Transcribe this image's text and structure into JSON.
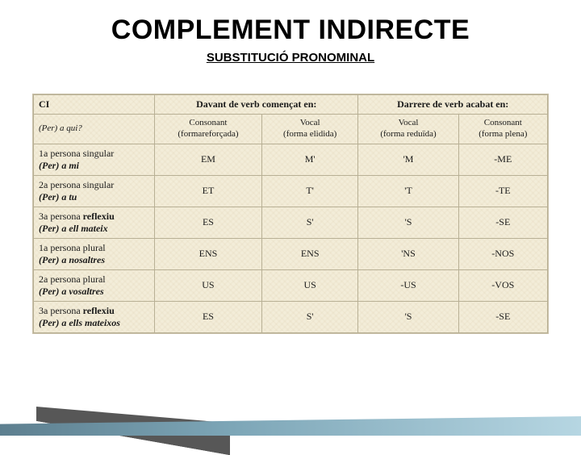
{
  "title": "COMPLEMENT INDIRECTE",
  "subtitle": "SUBSTITUCIÓ PRONOMINAL",
  "table": {
    "header_ci": "CI",
    "header_davant": "Davant de verb començat en:",
    "header_darrere": "Darrere de verb acabat en:",
    "ci_question": "(Per) a qui?",
    "sub_consonant_ref": "Consonant",
    "sub_consonant_ref_note": "(formareforçada)",
    "sub_vocal_elid": "Vocal",
    "sub_vocal_elid_note": "(forma elidida)",
    "sub_vocal_red": "Vocal",
    "sub_vocal_red_note": "(forma reduïda)",
    "sub_consonant_ple": "Consonant",
    "sub_consonant_ple_note": "(forma plena)",
    "rows": [
      {
        "label": "1a persona singular",
        "sub": "(Per) a mi",
        "c1": "EM",
        "c2": "M'",
        "c3": "'M",
        "c4": "-ME"
      },
      {
        "label": "2a persona singular",
        "sub": "(Per) a tu",
        "c1": "ET",
        "c2": "T'",
        "c3": "'T",
        "c4": "-TE"
      },
      {
        "label_pre": "3a persona ",
        "label_bold": "reflexiu",
        "sub": "(Per) a ell mateix",
        "c1": "ES",
        "c2": "S'",
        "c3": "'S",
        "c4": "-SE"
      },
      {
        "label": "1a persona plural",
        "sub": "(Per) a nosaltres",
        "c1": "ENS",
        "c2": "ENS",
        "c3": "'NS",
        "c4": "-NOS"
      },
      {
        "label": "2a persona plural",
        "sub": "(Per) a vosaltres",
        "c1": "US",
        "c2": "US",
        "c3": "-US",
        "c4": "-VOS"
      },
      {
        "label_pre": "3a persona ",
        "label_bold": "reflexiu",
        "sub": "(Per) a ells mateixos",
        "c1": "ES",
        "c2": "S'",
        "c3": "'S",
        "c4": "-SE"
      }
    ]
  },
  "style": {
    "bg": "#ffffff",
    "canvas_bg": "#f3edd9",
    "border": "#b8b095",
    "accent_gradient_from": "#5d7f8f",
    "accent_gradient_to": "#b6d6e2",
    "title_fontsize": 34,
    "subtitle_fontsize": 15,
    "table_fontsize": 12
  }
}
